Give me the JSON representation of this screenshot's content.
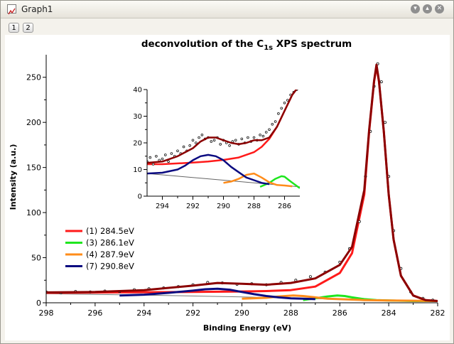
{
  "window": {
    "title": "Graph1",
    "icons": [
      "graph-icon",
      "minimize-icon",
      "restore-icon",
      "close-icon"
    ],
    "layer_buttons": [
      "1",
      "2"
    ]
  },
  "chart_data": [
    {
      "type": "line",
      "title_main": "deconvolution of the C",
      "title_sub": "1s",
      "title_rest": " XPS spectrum",
      "xlabel": "Binding Energy (eV)",
      "ylabel": "Intensity (a.u.)",
      "xlim": [
        298,
        282
      ],
      "ylim": [
        0,
        275
      ],
      "x_reversed": true,
      "xticks": [
        298,
        296,
        294,
        292,
        290,
        288,
        286,
        284,
        282
      ],
      "yticks": [
        0,
        50,
        100,
        150,
        200,
        250
      ],
      "legend_position": "left",
      "series": [
        {
          "name": "(1) 284.5eV",
          "color": "#ff1a1a",
          "x": [
            298,
            295,
            292,
            290,
            289,
            288,
            287,
            286,
            285.5,
            285,
            284.8,
            284.6,
            284.5,
            284.4,
            284.2,
            284,
            283.8,
            283.5,
            283,
            282.5,
            282
          ],
          "values": [
            11,
            11.5,
            12,
            12.5,
            13,
            14,
            18,
            33,
            55,
            120,
            190,
            245,
            262,
            245,
            190,
            120,
            70,
            30,
            8,
            3,
            2
          ]
        },
        {
          "name": "(3) 286.1eV",
          "color": "#1ee61e",
          "x": [
            287.5,
            287,
            286.5,
            286.1,
            285.8,
            285.5,
            285,
            284.5,
            284,
            283,
            282
          ],
          "values": [
            3,
            5,
            7,
            8,
            7.5,
            6,
            4,
            3,
            2.5,
            2,
            2
          ]
        },
        {
          "name": "(4) 287.9eV",
          "color": "#ff8c1a",
          "x": [
            290,
            289,
            288.5,
            287.9,
            287.5,
            287,
            286.5,
            286,
            285,
            284,
            282
          ],
          "values": [
            4.5,
            5.5,
            7,
            8,
            7.5,
            6,
            4.5,
            4,
            3,
            2.5,
            2
          ]
        },
        {
          "name": "(7) 290.8eV",
          "color": "#0a0a80",
          "x": [
            295,
            294,
            293,
            292,
            291.5,
            291,
            290.5,
            290,
            289.5,
            289,
            288.5,
            288,
            287.5,
            287
          ],
          "values": [
            8,
            9,
            11,
            13.5,
            15,
            15.5,
            14.5,
            12,
            9.5,
            7.5,
            6,
            5,
            4.5,
            4
          ]
        },
        {
          "name": "",
          "color": "#8b0000",
          "x": [
            298,
            296,
            294,
            292,
            291,
            290,
            289,
            288,
            287,
            286,
            285.5,
            285,
            284.8,
            284.6,
            284.5,
            284.4,
            284.2,
            284,
            283.8,
            283.5,
            283,
            282.5,
            282
          ],
          "values": [
            11.5,
            12,
            14,
            19,
            22,
            21,
            20,
            22,
            27,
            42,
            62,
            125,
            192,
            246,
            264,
            246,
            190,
            120,
            70,
            30,
            8,
            3,
            2
          ]
        },
        {
          "name": "",
          "color": "#777777",
          "x": [
            298,
            294,
            290,
            287,
            285,
            283,
            282
          ],
          "values": [
            10,
            8.5,
            6.5,
            4.5,
            3.2,
            2.3,
            2
          ]
        }
      ],
      "data_points": {
        "x": [
          298,
          297.4,
          296.8,
          296.2,
          295.6,
          295,
          294.4,
          293.8,
          293.2,
          292.6,
          292,
          291.4,
          290.8,
          290.2,
          289.6,
          289,
          288.4,
          287.8,
          287.2,
          286.6,
          286,
          285.6,
          285.2,
          284.95,
          284.75,
          284.6,
          284.45,
          284.3,
          284.15,
          284,
          283.8,
          283.5,
          283.1,
          282.6,
          282.2
        ],
        "values": [
          12,
          11,
          12.5,
          12,
          13,
          12.5,
          14.5,
          15.5,
          16.5,
          18,
          20,
          22.5,
          22,
          20.5,
          21,
          20,
          22.5,
          25,
          29,
          34,
          45,
          60,
          90,
          140,
          190,
          240,
          265,
          245,
          200,
          140,
          80,
          38,
          12,
          5,
          3
        ]
      }
    },
    {
      "type": "line",
      "inset": true,
      "xlim": [
        295,
        285
      ],
      "ylim": [
        0,
        40
      ],
      "x_reversed": true,
      "xticks": [
        294,
        292,
        290,
        288,
        286
      ],
      "yticks": [
        0,
        10,
        20,
        30,
        40
      ],
      "series": [
        {
          "name": "",
          "color": "#ff1a1a",
          "x": [
            295,
            294,
            293,
            292,
            291,
            290,
            289,
            288,
            287.5,
            287,
            286.5,
            286,
            285.5,
            285.1
          ],
          "values": [
            12,
            12,
            12.3,
            12.6,
            13,
            13.6,
            14.5,
            16.5,
            18.5,
            21.5,
            26,
            32,
            38,
            41
          ]
        },
        {
          "name": "",
          "color": "#1ee61e",
          "x": [
            287.6,
            287,
            286.6,
            286.2,
            286,
            285.6,
            285
          ],
          "values": [
            3.5,
            5,
            6.5,
            7.5,
            7.3,
            5.5,
            3
          ]
        },
        {
          "name": "",
          "color": "#ff8c1a",
          "x": [
            290,
            289.5,
            289,
            288.5,
            288,
            287.5,
            287,
            286.5,
            286,
            285.5
          ],
          "values": [
            5,
            5.5,
            6.5,
            8,
            8.5,
            7,
            5.2,
            4.2,
            4,
            3.7
          ]
        },
        {
          "name": "",
          "color": "#0a0a80",
          "x": [
            295,
            294,
            293,
            292.5,
            292,
            291.5,
            291,
            290.5,
            290,
            289.5,
            289,
            288.5,
            288,
            287.5,
            287
          ],
          "values": [
            8.5,
            8.8,
            10,
            11.5,
            13.5,
            15,
            15.5,
            15,
            13.5,
            11,
            9,
            7,
            6,
            5,
            4.5
          ]
        },
        {
          "name": "",
          "color": "#8b0000",
          "x": [
            295,
            294,
            293,
            292,
            291.5,
            291,
            290.5,
            290,
            289.5,
            289,
            288.5,
            288,
            287.5,
            287,
            286.5,
            286,
            285.5,
            285.1
          ],
          "values": [
            12.5,
            13,
            15,
            18,
            20.5,
            22,
            22,
            21,
            20,
            19.5,
            20,
            21,
            21,
            22,
            26,
            32,
            38,
            41
          ]
        },
        {
          "name": "",
          "color": "#666666",
          "x": [
            295,
            293,
            291,
            289,
            287,
            285
          ],
          "values": [
            8.5,
            7.5,
            6.5,
            5.5,
            4.5,
            3.5
          ]
        }
      ],
      "data_points": {
        "x": [
          295,
          294.8,
          294.6,
          294.4,
          294.2,
          294,
          293.8,
          293.6,
          293.4,
          293.2,
          293,
          292.8,
          292.6,
          292.4,
          292.2,
          292,
          291.8,
          291.6,
          291.4,
          291.2,
          291,
          290.8,
          290.6,
          290.4,
          290.2,
          290,
          289.8,
          289.6,
          289.4,
          289.2,
          289,
          288.8,
          288.6,
          288.4,
          288.2,
          288,
          287.8,
          287.6,
          287.4,
          287.2,
          287,
          286.8,
          286.6,
          286.4,
          286.2,
          286,
          285.8,
          285.6,
          285.4,
          285.2,
          285.05
        ],
        "values": [
          13,
          14.5,
          12,
          15,
          13.5,
          14,
          15.5,
          13,
          16,
          15,
          17,
          16,
          18.5,
          17,
          19,
          21,
          20,
          22,
          23,
          21.5,
          22,
          20.5,
          21,
          22,
          19.5,
          21,
          20,
          19,
          20.5,
          21,
          19.5,
          21.5,
          20,
          22,
          20.5,
          22,
          21,
          23,
          22.5,
          24,
          25,
          27,
          28,
          31,
          33,
          35,
          36,
          38,
          39,
          40,
          41
        ]
      }
    }
  ]
}
